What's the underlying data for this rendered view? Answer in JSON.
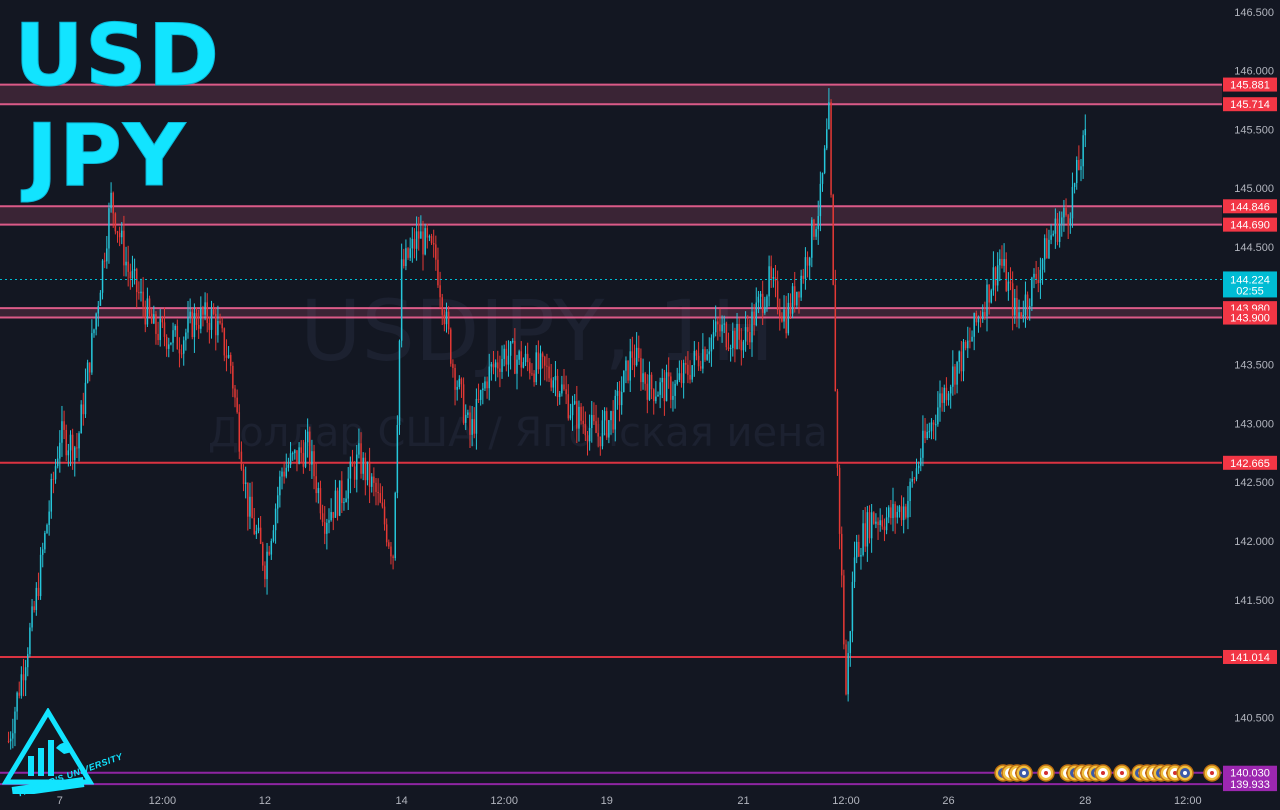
{
  "window": {
    "pair_title_base": "USD",
    "pair_title_quote": "JPY",
    "watermark_symbol": "USDJPY, 1H",
    "watermark_description": "Доллар США / Японская иена",
    "logo_text": "TRADER'S UNIVERSITY"
  },
  "colors": {
    "background": "#131722",
    "up_candle": "#26c6da",
    "down_candle": "#e53935",
    "resistance_zone": "#f06292",
    "level_line": "#f23645",
    "purple_line": "#9c27b0",
    "current_price_tag": "#00bcd4",
    "title_cyan": "#12e4ff"
  },
  "chart_data": {
    "type": "candlestick",
    "symbol": "USDJPY",
    "timeframe": "1H",
    "ylim": [
      139.9,
      146.6
    ],
    "y_ticks": [
      140.5,
      141.0,
      141.5,
      142.0,
      142.5,
      143.0,
      143.5,
      144.0,
      144.5,
      145.0,
      145.5,
      146.0,
      146.5
    ],
    "y_tick_labels": [
      "140.500",
      "141.000",
      "141.500",
      "142.000",
      "142.500",
      "143.000",
      "143.500",
      "144.000",
      "144.500",
      "145.000",
      "145.500",
      "146.000",
      "146.500"
    ],
    "x_ticks": [
      "7",
      "12:00",
      "12",
      "14",
      "12:00",
      "19",
      "21",
      "12:00",
      "26",
      "28",
      "12:00"
    ],
    "x_tick_index": [
      6,
      18,
      30,
      46,
      58,
      70,
      86,
      98,
      110,
      126,
      138
    ],
    "x_range": [
      -1,
      142
    ],
    "grid": false,
    "current_price": 144.224,
    "current_price_label": "144.224",
    "countdown_label": "02:55",
    "horizontal_levels": [
      {
        "value": 145.881,
        "label": "145.881",
        "style": "zone"
      },
      {
        "value": 145.714,
        "label": "145.714",
        "style": "zone"
      },
      {
        "value": 144.846,
        "label": "144.846",
        "style": "zone"
      },
      {
        "value": 144.69,
        "label": "144.690",
        "style": "zone"
      },
      {
        "value": 143.98,
        "label": "143.980",
        "style": "zone"
      },
      {
        "value": 143.9,
        "label": "143.900",
        "style": "zone"
      },
      {
        "value": 142.665,
        "label": "142.665",
        "style": "line"
      },
      {
        "value": 141.014,
        "label": "141.014",
        "style": "line"
      },
      {
        "value": 140.03,
        "label": "140.030",
        "style": "purple"
      },
      {
        "value": 139.933,
        "label": "139.933",
        "style": "purple"
      }
    ],
    "close_path": [
      [
        0,
        140.3
      ],
      [
        3,
        141.4
      ],
      [
        6,
        142.9
      ],
      [
        8,
        142.8
      ],
      [
        10,
        143.8
      ],
      [
        12,
        144.9
      ],
      [
        14,
        144.3
      ],
      [
        17,
        143.8
      ],
      [
        20,
        143.7
      ],
      [
        22,
        143.9
      ],
      [
        24,
        143.9
      ],
      [
        26,
        143.5
      ],
      [
        28,
        142.3
      ],
      [
        30,
        141.8
      ],
      [
        32,
        142.6
      ],
      [
        35,
        142.8
      ],
      [
        37,
        142.2
      ],
      [
        39,
        142.4
      ],
      [
        41,
        142.7
      ],
      [
        43,
        142.4
      ],
      [
        45,
        141.9
      ],
      [
        46,
        144.3
      ],
      [
        48,
        144.6
      ],
      [
        50,
        144.4
      ],
      [
        52,
        143.5
      ],
      [
        54,
        142.9
      ],
      [
        56,
        143.4
      ],
      [
        58,
        143.6
      ],
      [
        61,
        143.5
      ],
      [
        64,
        143.4
      ],
      [
        66,
        143.1
      ],
      [
        69,
        142.9
      ],
      [
        71,
        143.1
      ],
      [
        73,
        143.6
      ],
      [
        75,
        143.3
      ],
      [
        78,
        143.3
      ],
      [
        80,
        143.5
      ],
      [
        83,
        143.8
      ],
      [
        86,
        143.7
      ],
      [
        89,
        144.2
      ],
      [
        91,
        143.9
      ],
      [
        93,
        144.3
      ],
      [
        95,
        144.9
      ],
      [
        96,
        145.6
      ],
      [
        97,
        142.6
      ],
      [
        98,
        140.7
      ],
      [
        99,
        141.9
      ],
      [
        101,
        142.2
      ],
      [
        103,
        142.2
      ],
      [
        105,
        142.3
      ],
      [
        107,
        142.8
      ],
      [
        109,
        143.2
      ],
      [
        111,
        143.5
      ],
      [
        112,
        143.6
      ],
      [
        114,
        144.0
      ],
      [
        116,
        144.4
      ],
      [
        118,
        143.9
      ],
      [
        120,
        144.2
      ],
      [
        122,
        144.6
      ],
      [
        124,
        144.8
      ],
      [
        126,
        145.4
      ]
    ]
  }
}
